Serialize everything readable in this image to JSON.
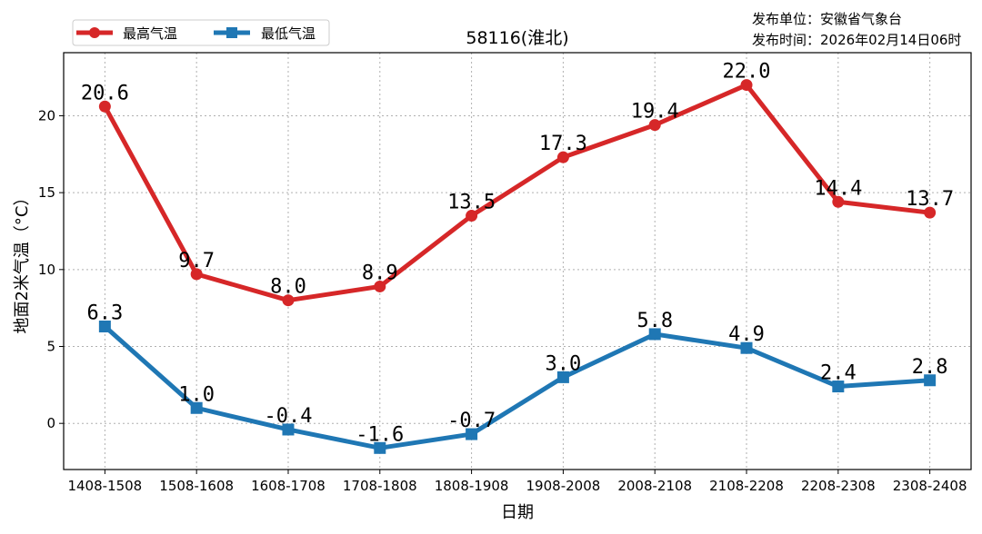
{
  "publisher": {
    "unit": "发布单位：安徽省气象台",
    "time": "发布时间：2026年02月14日06时"
  },
  "chart_data": {
    "type": "line",
    "title": "58116(淮北)",
    "xlabel": "日期",
    "ylabel": "地面2米气温（°C）",
    "categories": [
      "1408-1508",
      "1508-1608",
      "1608-1708",
      "1708-1808",
      "1808-1908",
      "1908-2008",
      "2008-2108",
      "2108-2208",
      "2208-2308",
      "2308-2408"
    ],
    "ylim": [
      -3.0,
      24.1
    ],
    "yticks": [
      0,
      5,
      10,
      15,
      20
    ],
    "grid": true,
    "legend_position": "top-left",
    "series": [
      {
        "name": "最高气温",
        "color": "#d62728",
        "marker": "circle",
        "values": [
          20.6,
          9.7,
          8.0,
          8.9,
          13.5,
          17.3,
          19.4,
          22.0,
          14.4,
          13.7
        ]
      },
      {
        "name": "最低气温",
        "color": "#1f77b4",
        "marker": "square",
        "values": [
          6.3,
          1.0,
          -0.4,
          -1.6,
          -0.7,
          3.0,
          5.8,
          4.9,
          2.4,
          2.8
        ]
      }
    ]
  }
}
